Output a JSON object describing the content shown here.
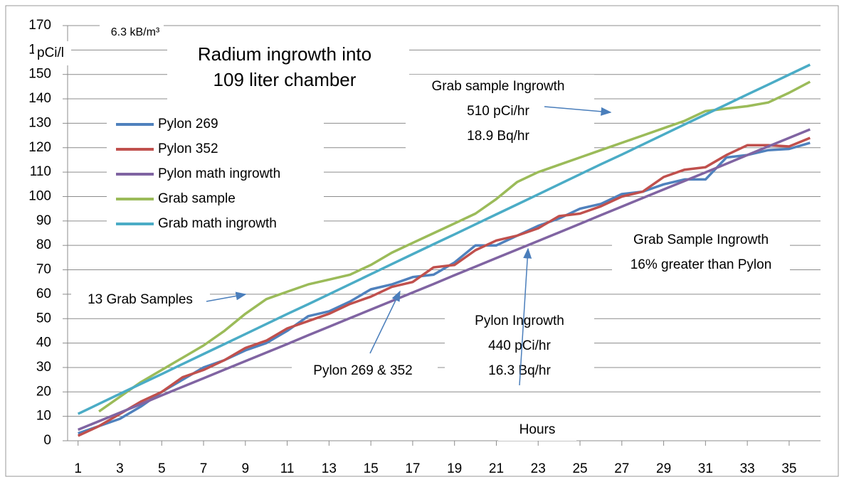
{
  "chart_data": {
    "type": "line",
    "title": [
      "Radium ingrowth into",
      "109 liter chamber"
    ],
    "y_label": "pCi/l",
    "x_label": "Hours",
    "annotations": [
      [
        "6.3 kB/m³"
      ],
      [
        "Grab sample Ingrowth",
        "510 pCi/hr",
        "18.9 Bq/hr"
      ],
      [
        "Grab Sample Ingrowth",
        "16% greater than Pylon"
      ],
      [
        "13 Grab Samples"
      ],
      [
        "Pylon Ingrowth",
        "440 pCi/hr",
        "16.3 Bq/hr"
      ],
      [
        "Pylon 269 & 352"
      ]
    ],
    "x": [
      1,
      2,
      3,
      4,
      5,
      6,
      7,
      8,
      9,
      10,
      11,
      12,
      13,
      14,
      15,
      16,
      17,
      18,
      19,
      20,
      21,
      22,
      23,
      24,
      25,
      26,
      27,
      28,
      29,
      30,
      31,
      32,
      33,
      34,
      35,
      36
    ],
    "xlim": [
      0.5,
      36.5
    ],
    "xticks": [
      1,
      3,
      5,
      7,
      9,
      11,
      13,
      15,
      17,
      19,
      21,
      23,
      25,
      27,
      29,
      31,
      33,
      35
    ],
    "ylim": [
      0,
      170
    ],
    "yticks": [
      0,
      10,
      20,
      30,
      40,
      50,
      60,
      70,
      80,
      90,
      100,
      110,
      120,
      130,
      140,
      150,
      160,
      170
    ],
    "grid": true,
    "legend": "left",
    "series": [
      {
        "name": "Pylon 269",
        "color": "#4f81bd",
        "values": [
          3,
          6,
          9,
          14,
          20,
          25,
          30,
          33,
          37,
          40,
          45,
          51,
          53,
          57,
          62,
          64,
          67,
          68,
          73,
          80,
          80,
          84,
          88,
          91,
          95,
          97,
          101,
          102,
          105,
          107,
          107,
          116,
          117,
          119,
          119.5,
          122
        ]
      },
      {
        "name": "Pylon 352",
        "color": "#c0504d",
        "values": [
          2,
          6,
          11,
          16,
          20,
          26,
          29,
          33,
          38,
          41,
          46,
          49,
          52,
          56,
          59,
          63,
          65,
          71,
          72,
          78,
          82,
          84,
          87,
          92,
          93,
          96,
          100,
          102,
          108,
          111,
          112,
          117,
          121,
          121,
          120.5,
          124
        ]
      },
      {
        "name": "Pylon math ingrowth",
        "color": "#8064a2",
        "values": [
          4.5,
          8.0,
          11.5,
          15.0,
          18.6,
          22.1,
          25.6,
          29.1,
          32.6,
          36.1,
          39.6,
          43.2,
          46.7,
          50.2,
          53.7,
          57.2,
          60.7,
          64.2,
          67.8,
          71.3,
          74.8,
          78.3,
          81.8,
          85.3,
          88.8,
          92.4,
          95.9,
          99.4,
          102.9,
          106.4,
          109.9,
          113.4,
          117.0,
          120.5,
          124.0,
          127.5
        ]
      },
      {
        "name": "Grab sample",
        "color": "#9bbb59",
        "values": [
          null,
          12,
          18,
          24,
          29,
          34,
          39,
          45,
          52,
          58,
          61,
          64,
          66,
          68,
          72,
          77,
          81,
          85,
          89,
          93,
          99,
          106,
          110,
          113,
          116,
          119,
          122,
          125,
          128,
          131,
          135,
          136,
          137,
          138.5,
          142.5,
          147
        ]
      },
      {
        "name": "Grab math ingrowth",
        "color": "#4bacc6",
        "values": [
          11,
          15.1,
          19.2,
          23.3,
          27.3,
          31.4,
          35.5,
          39.6,
          43.7,
          47.8,
          51.9,
          55.9,
          60.0,
          64.1,
          68.2,
          72.3,
          76.4,
          80.5,
          84.5,
          88.6,
          92.7,
          96.8,
          100.9,
          105.0,
          109.1,
          113.2,
          117.2,
          121.3,
          125.4,
          129.5,
          133.6,
          137.7,
          141.8,
          145.8,
          149.9,
          154.0
        ]
      }
    ]
  }
}
